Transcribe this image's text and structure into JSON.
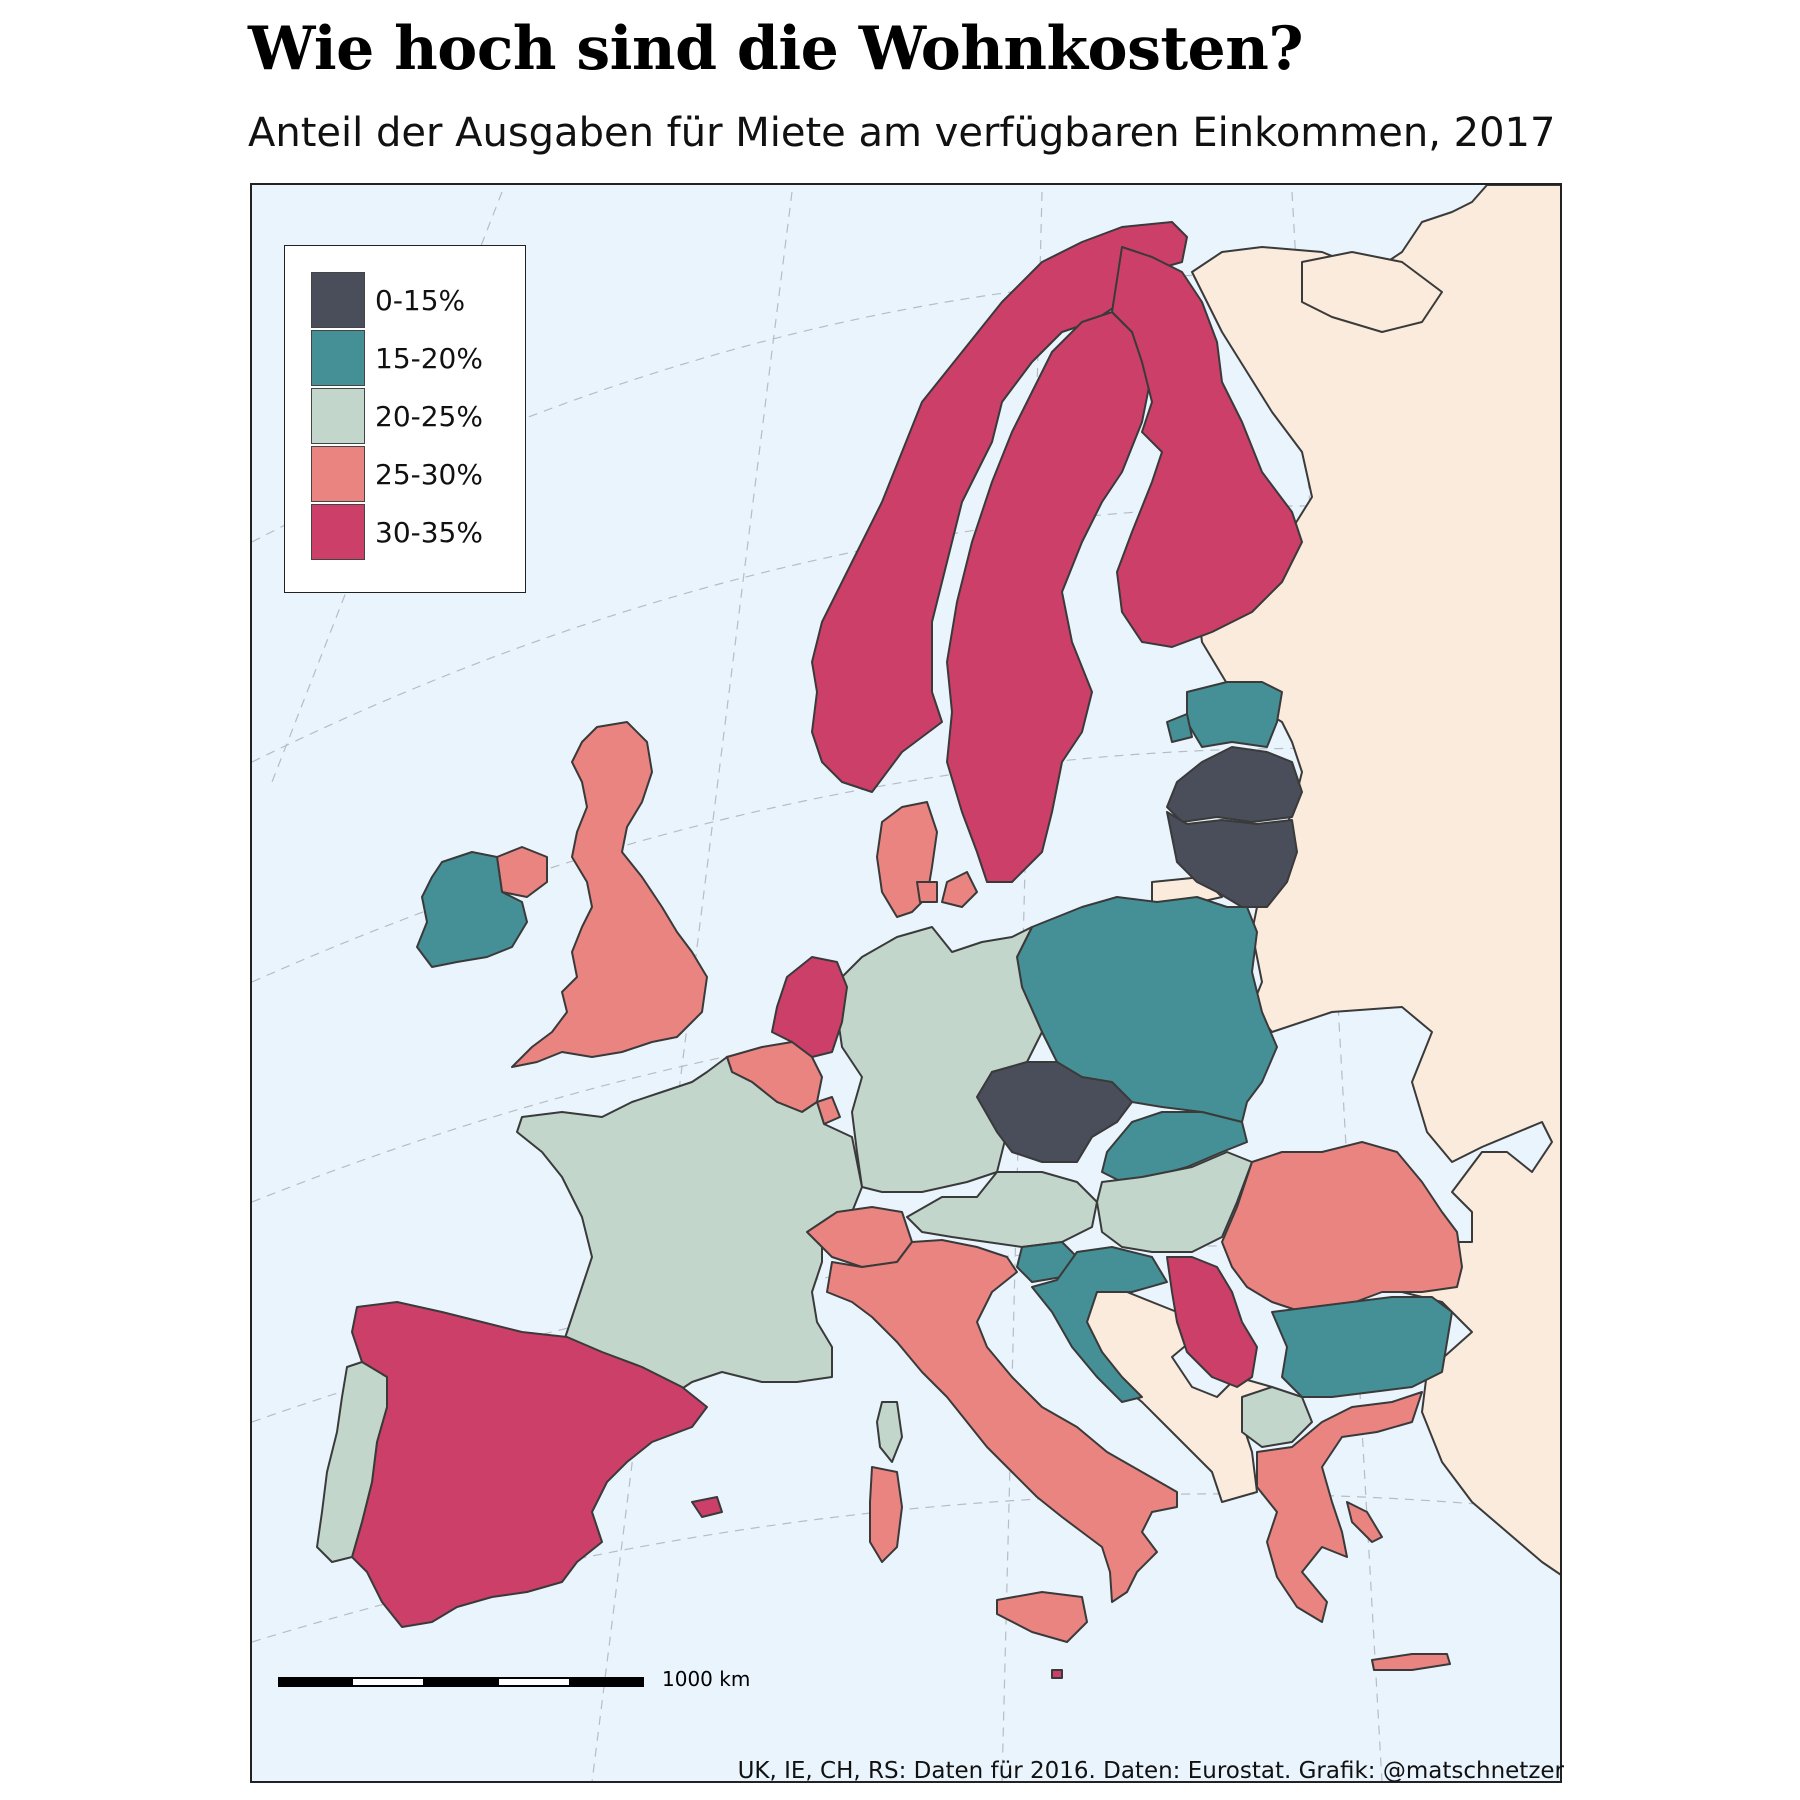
{
  "title": "Wie hoch sind die Wohnkosten?",
  "subtitle": "Anteil der Ausgaben für Miete am verfügbaren Einkommen, 2017",
  "source": "UK, IE, CH, RS: Daten für 2016. Daten: Eurostat. Grafik: @matschnetzer",
  "scale_label": "1000 km",
  "colors": {
    "sea": "#eaf4fd",
    "no_data": "#faebdc",
    "border": "#3a3a3a"
  },
  "legend": [
    {
      "label": "0-15%",
      "color": "#4a4e5a"
    },
    {
      "label": "15-20%",
      "color": "#459096"
    },
    {
      "label": "20-25%",
      "color": "#c2d6cc"
    },
    {
      "label": "25-30%",
      "color": "#ea8480"
    },
    {
      "label": "30-35%",
      "color": "#cc3f69"
    }
  ],
  "countries": {
    "Norway": "30-35%",
    "Sweden": "30-35%",
    "Finland": "30-35%",
    "Estonia": "15-20%",
    "Latvia": "0-15%",
    "Lithuania": "0-15%",
    "Poland": "15-20%",
    "Czechia": "0-15%",
    "Slovakia": "15-20%",
    "Hungary": "20-25%",
    "Romania": "25-30%",
    "Bulgaria": "15-20%",
    "Greece": "25-30%",
    "North Macedonia": "20-25%",
    "Serbia": "30-35%",
    "Croatia": "15-20%",
    "Slovenia": "15-20%",
    "Austria": "20-25%",
    "Germany": "20-25%",
    "Denmark": "25-30%",
    "Netherlands": "30-35%",
    "Belgium": "25-30%",
    "Luxembourg": "25-30%",
    "France": "20-25%",
    "Switzerland": "25-30%",
    "Italy": "25-30%",
    "Spain": "30-35%",
    "Portugal": "20-25%",
    "United Kingdom": "25-30%",
    "Ireland": "15-20%",
    "Malta": "30-35%",
    "Cyprus": "25-30%"
  }
}
